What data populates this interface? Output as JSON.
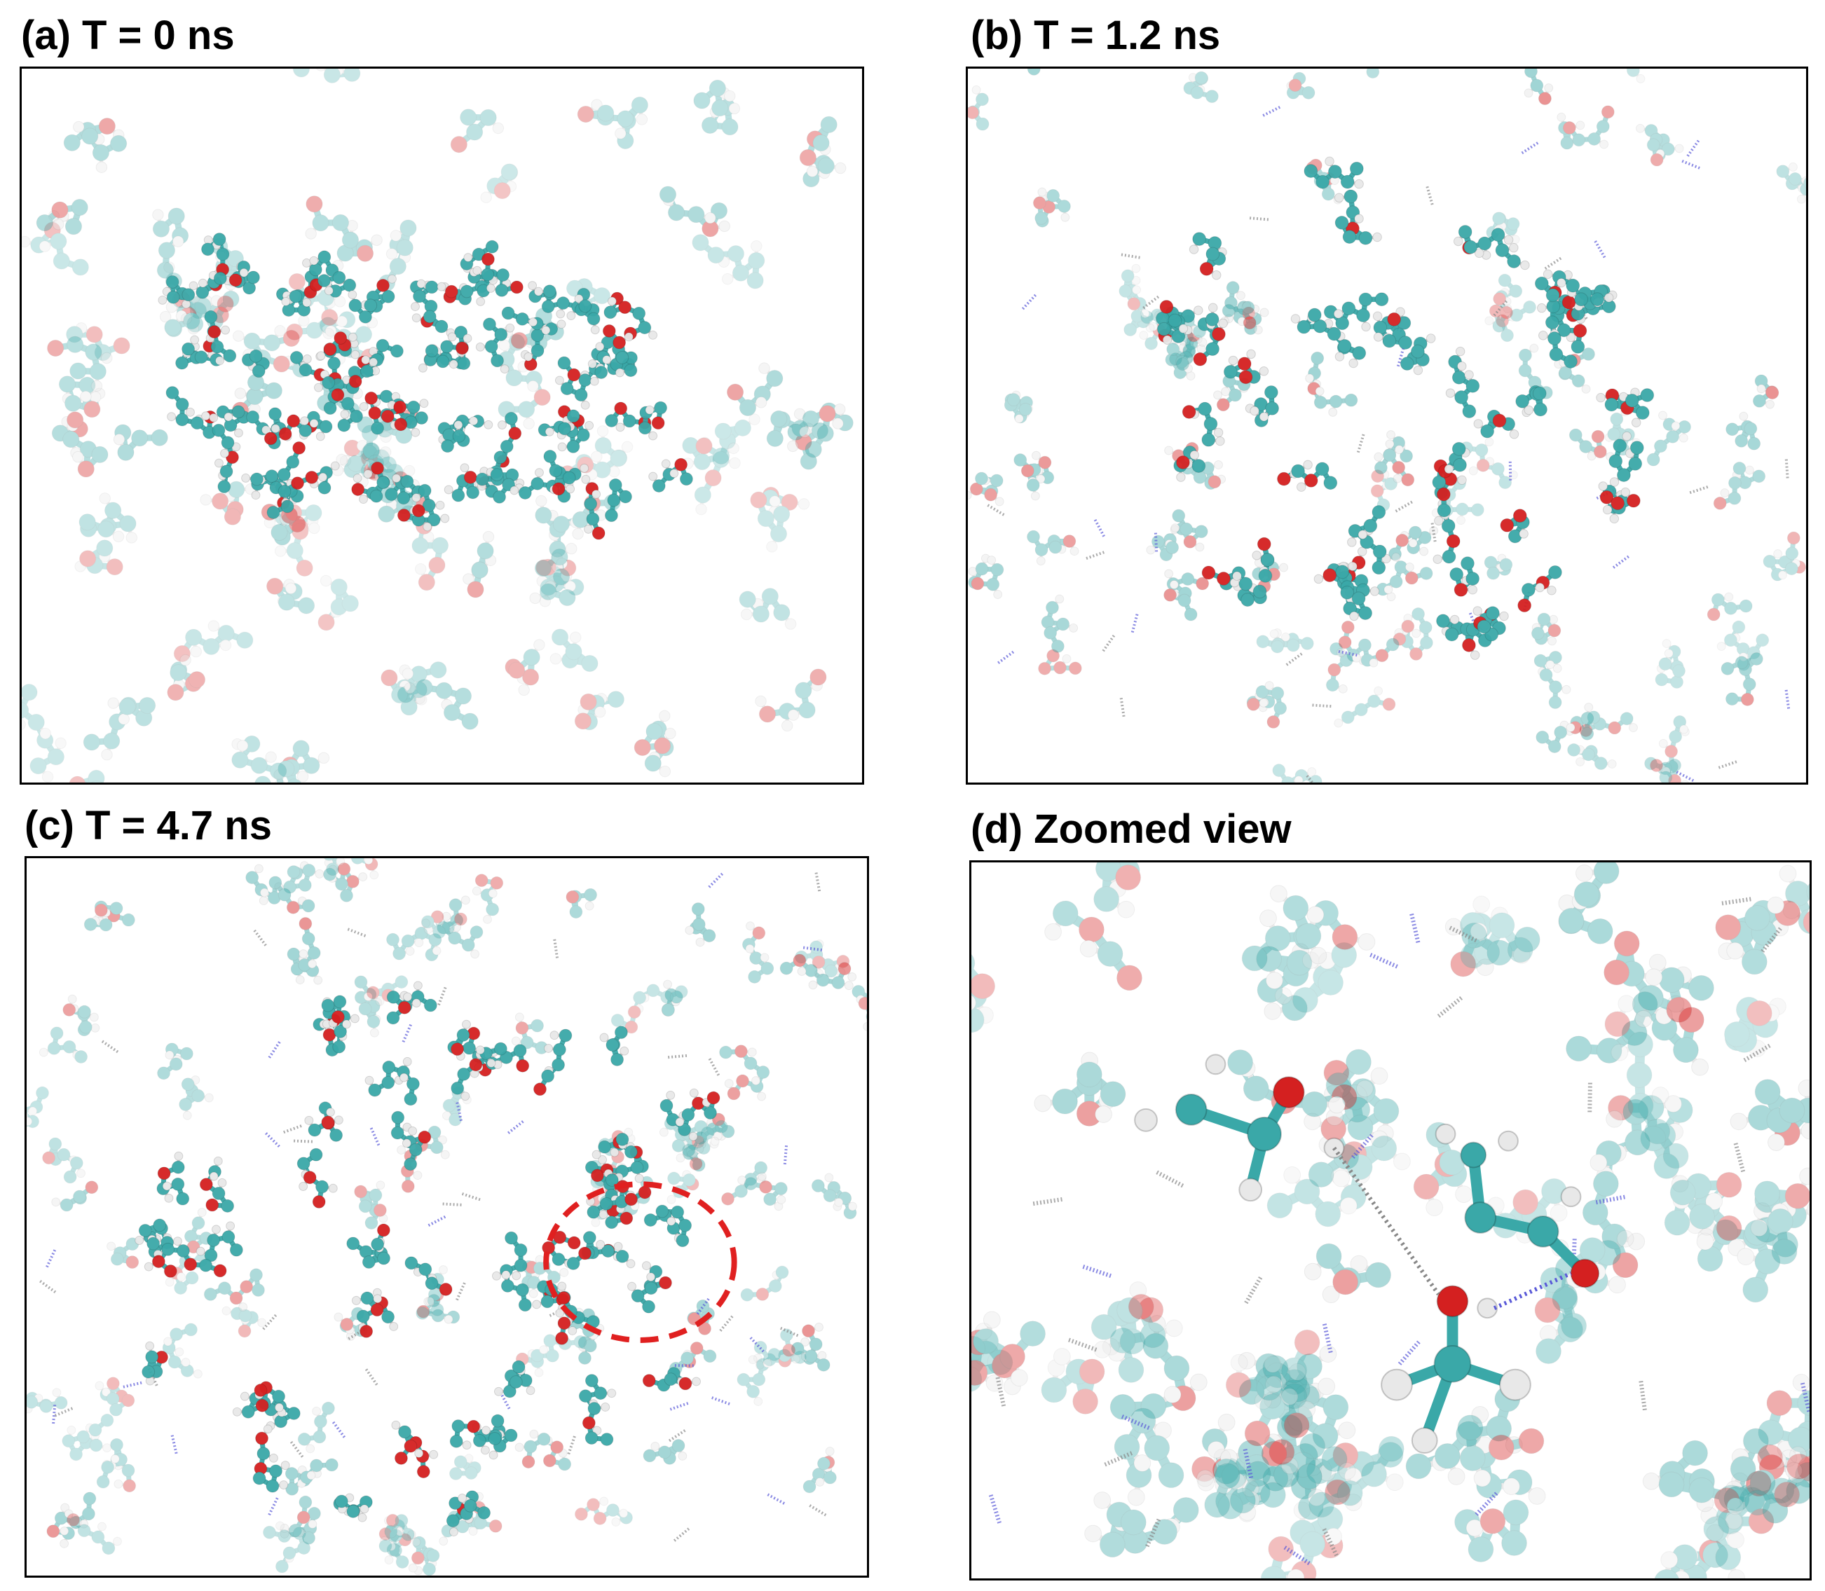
{
  "panels": [
    {
      "id": "a",
      "title": "(a) T = 0 ns"
    },
    {
      "id": "b",
      "title": "(b) T = 1.2 ns"
    },
    {
      "id": "c",
      "title": "(c) T = 4.7 ns"
    },
    {
      "id": "d",
      "title": "(d) Zoomed view"
    }
  ],
  "colors": {
    "carbon": "#3aa8a8",
    "oxygen": "#d42020",
    "hydrogen": "#e8e8e8",
    "hbond": "#5a5ad8",
    "highlight_circle": "#e02020"
  }
}
